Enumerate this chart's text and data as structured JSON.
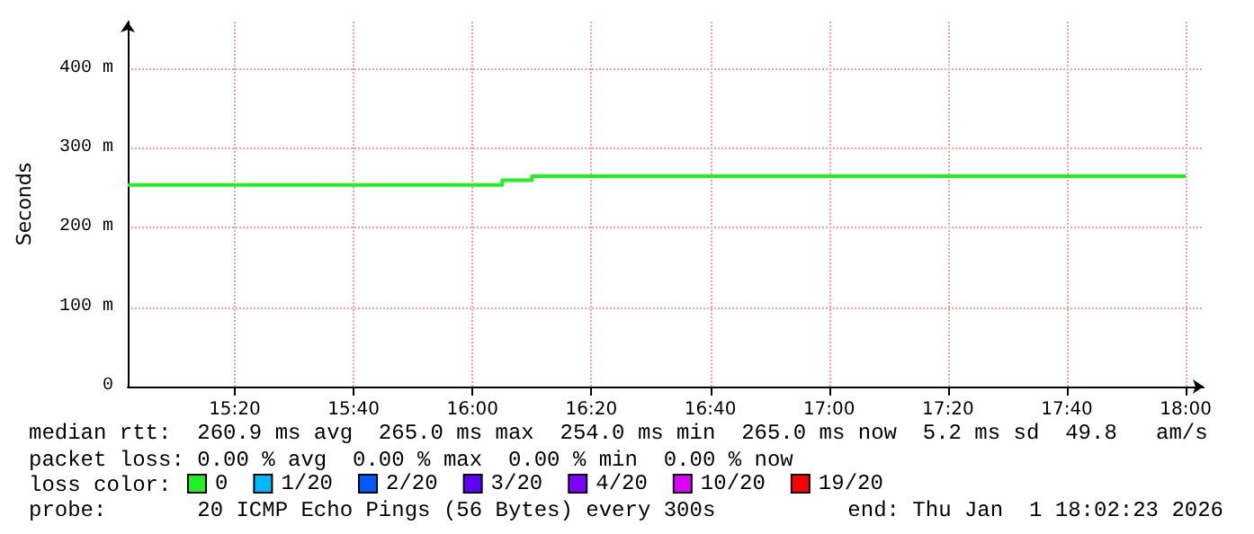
{
  "chart_data": {
    "type": "step",
    "ylabel": "Seconds",
    "x": [
      "2026-01-01T15:02",
      "2026-01-01T16:05",
      "2026-01-01T16:10",
      "2026-01-01T18:00"
    ],
    "series": [
      {
        "name": "0",
        "color": "#20f020",
        "values": [
          254,
          260,
          265,
          265
        ]
      },
      {
        "name": "1/20",
        "color": "#00b8ff",
        "values": [
          null,
          null,
          null,
          null
        ]
      },
      {
        "name": "2/20",
        "color": "#0059ff",
        "values": [
          null,
          null,
          null,
          null
        ]
      },
      {
        "name": "3/20",
        "color": "#5e00ff",
        "values": [
          null,
          null,
          null,
          null
        ]
      },
      {
        "name": "4/20",
        "color": "#7e00ff",
        "values": [
          null,
          null,
          null,
          null
        ]
      },
      {
        "name": "10/20",
        "color": "#dd00ff",
        "values": [
          null,
          null,
          null,
          null
        ]
      },
      {
        "name": "19/20",
        "color": "#ff0000",
        "values": [
          null,
          null,
          null,
          null
        ]
      }
    ],
    "legend_title": "loss color:",
    "legend": "bottom",
    "xlim": [
      "2026-01-01T15:02",
      "2026-01-01T18:03"
    ],
    "xticks": [
      {
        "value": "2026-01-01T15:20",
        "label": "15:20"
      },
      {
        "value": "2026-01-01T15:40",
        "label": "15:40"
      },
      {
        "value": "2026-01-01T16:00",
        "label": "16:00"
      },
      {
        "value": "2026-01-01T16:20",
        "label": "16:20"
      },
      {
        "value": "2026-01-01T16:40",
        "label": "16:40"
      },
      {
        "value": "2026-01-01T17:00",
        "label": "17:00"
      },
      {
        "value": "2026-01-01T17:20",
        "label": "17:20"
      },
      {
        "value": "2026-01-01T17:40",
        "label": "17:40"
      },
      {
        "value": "2026-01-01T18:00",
        "label": "18:00"
      }
    ],
    "ylim": [
      0,
      460
    ],
    "yticks": [
      0,
      {
        "value": 100,
        "label": "100 m"
      },
      {
        "value": 200,
        "label": "200 m"
      },
      {
        "value": 300,
        "label": "300 m"
      },
      {
        "value": 400,
        "label": "400 m"
      }
    ],
    "grid": true,
    "marker": "none",
    "annotations": [
      "median rtt:  260.9 ms avg  265.0 ms max  254.0 ms min  265.0 ms now  5.2 ms sd  49.8   am/s",
      "packet loss: 0.00 % avg  0.00 % max  0.00 % min  0.00 % now",
      "probe:       20 ICMP Echo Pings (56 Bytes) every 300s",
      "end: Thu Jan  1 18:02:23 2026"
    ]
  }
}
